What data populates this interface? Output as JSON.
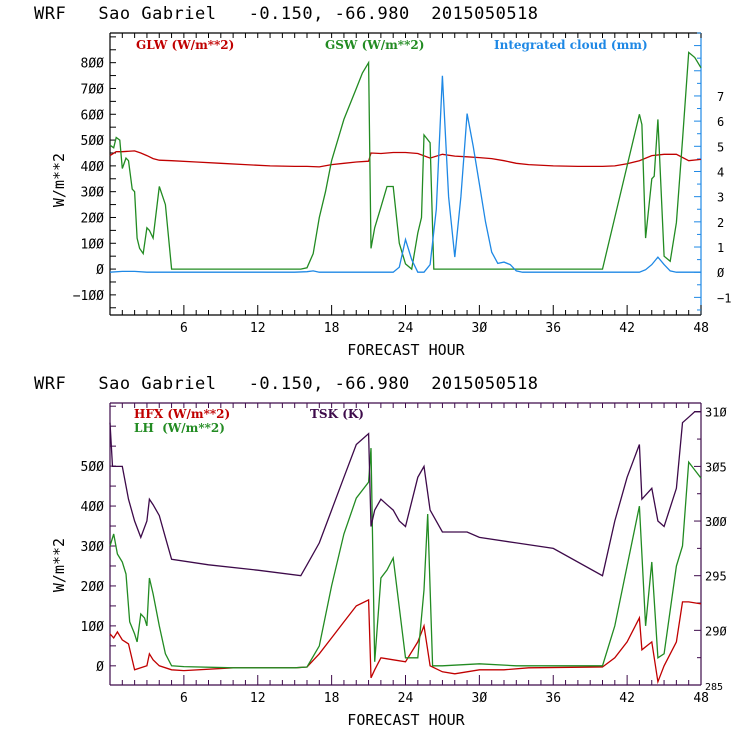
{
  "charts_meta": {
    "top_title": "WRF   Sao Gabriel   -0.150, -66.980  2015050518",
    "bottom_title": "WRF   Sao Gabriel   -0.150, -66.980  2015050518"
  },
  "colors": {
    "glw": "#c00000",
    "gsw": "#228b22",
    "cloud": "#1e88e5",
    "hfx": "#c00000",
    "lh": "#228b22",
    "tsk": "#3d0a4a",
    "frame_top": "#000000",
    "right_axis_top": "#1e88e5",
    "frame_bottom": "#3d0a4a"
  },
  "chart_data": [
    {
      "type": "line",
      "title": "WRF   Sao Gabriel   -0.150, -66.980  2015050518",
      "xlabel": "FORECAST HOUR",
      "ylabel": "W/m**2",
      "ylabel_right": "",
      "xlim": [
        0,
        48
      ],
      "ylim": [
        -178,
        915
      ],
      "ylim_right": [
        -1.7,
        9.5
      ],
      "xticks": [
        6,
        12,
        18,
        24,
        30,
        36,
        42,
        48
      ],
      "yticks": [
        -100,
        0,
        100,
        200,
        300,
        400,
        500,
        600,
        700,
        800
      ],
      "yticks_right": [
        -1,
        0,
        1,
        2,
        3,
        4,
        5,
        6,
        7
      ],
      "grid": false,
      "legend_position": "top",
      "series": [
        {
          "name": "GLW (W/m**2)",
          "axis": "left",
          "x": [
            0,
            0.5,
            1,
            2,
            2.5,
            3,
            3.5,
            4,
            5,
            7,
            9,
            11,
            13,
            15,
            16,
            17,
            18,
            19,
            20,
            21,
            21.2,
            22,
            23,
            24,
            25,
            26,
            27,
            28,
            29,
            30,
            31,
            32,
            33,
            34,
            36,
            38,
            40,
            41,
            42,
            43,
            44,
            45,
            46,
            47,
            48
          ],
          "values": [
            440,
            455,
            455,
            458,
            450,
            440,
            428,
            422,
            420,
            415,
            410,
            405,
            400,
            398,
            398,
            396,
            405,
            410,
            415,
            418,
            450,
            448,
            452,
            452,
            448,
            430,
            445,
            438,
            435,
            432,
            428,
            420,
            410,
            405,
            400,
            398,
            398,
            400,
            408,
            420,
            440,
            445,
            445,
            420,
            425
          ]
        },
        {
          "name": "GSW (W/m**2)",
          "axis": "left",
          "x": [
            0,
            0.3,
            0.5,
            0.8,
            1.0,
            1.3,
            1.5,
            1.8,
            2.0,
            2.2,
            2.4,
            2.7,
            3.0,
            3.2,
            3.5,
            4.0,
            4.5,
            5.0,
            15.5,
            16,
            16.5,
            17,
            17.5,
            18,
            19,
            20,
            20.5,
            21,
            21.2,
            21.5,
            22,
            22.5,
            23,
            23.5,
            24,
            24.5,
            25,
            25.3,
            25.5,
            26,
            26.3,
            27,
            40,
            41,
            42,
            43,
            43.2,
            43.5,
            44,
            44.2,
            44.5,
            45,
            45.5,
            46,
            46.5,
            47,
            47.5,
            48
          ],
          "values": [
            480,
            470,
            510,
            500,
            390,
            430,
            420,
            310,
            300,
            120,
            80,
            60,
            160,
            150,
            120,
            320,
            250,
            0,
            0,
            5,
            60,
            200,
            300,
            420,
            580,
            700,
            760,
            800,
            80,
            160,
            240,
            320,
            320,
            100,
            20,
            0,
            140,
            200,
            520,
            490,
            0,
            0,
            0,
            200,
            400,
            600,
            560,
            120,
            350,
            360,
            580,
            50,
            30,
            180,
            500,
            840,
            820,
            780
          ]
        },
        {
          "name": "Integrated cloud (mm)",
          "axis": "right",
          "x": [
            0,
            1,
            2,
            3,
            15,
            16,
            16.5,
            17,
            23,
            23.5,
            24,
            24.5,
            25,
            25.5,
            26,
            26.5,
            27,
            27.5,
            28,
            28.5,
            29,
            29.5,
            30,
            30.5,
            31,
            31.5,
            32,
            32.5,
            33,
            33.5,
            43,
            43.5,
            44,
            44.5,
            45,
            45.5,
            46,
            48
          ],
          "values": [
            0,
            0.03,
            0.03,
            0,
            0,
            0.02,
            0.05,
            0,
            0,
            0.2,
            1.3,
            0.5,
            0,
            0,
            0.3,
            2.5,
            7.8,
            3.0,
            0.6,
            3.0,
            6.3,
            5.0,
            3.5,
            2.0,
            0.8,
            0.35,
            0.4,
            0.3,
            0.05,
            0,
            0,
            0.1,
            0.3,
            0.6,
            0.3,
            0.05,
            0,
            0
          ]
        }
      ]
    },
    {
      "type": "line",
      "title": "WRF   Sao Gabriel   -0.150, -66.980  2015050518",
      "xlabel": "FORECAST HOUR",
      "ylabel": "W/m**2",
      "ylabel_right": "",
      "xlim": [
        0,
        48
      ],
      "ylim": [
        -48,
        658
      ],
      "ylim_right": [
        285,
        310.8
      ],
      "xticks": [
        6,
        12,
        18,
        24,
        30,
        36,
        42,
        48
      ],
      "yticks": [
        0,
        100,
        200,
        300,
        400,
        500
      ],
      "yticks_right": [
        285,
        290,
        295,
        300,
        305,
        310
      ],
      "grid": false,
      "legend_position": "top",
      "series": [
        {
          "name": "HFX (W/m**2)",
          "axis": "left",
          "x": [
            0,
            0.3,
            0.6,
            1.0,
            1.5,
            2.0,
            2.5,
            3.0,
            3.2,
            3.5,
            4.0,
            5.0,
            6.0,
            10,
            15,
            16,
            17,
            18,
            19,
            20,
            21,
            21.2,
            21.5,
            22,
            23,
            24,
            25,
            25.5,
            26,
            27,
            28,
            30,
            32,
            34,
            40,
            41,
            42,
            43,
            43.2,
            44,
            44.5,
            45,
            46,
            46.5,
            47,
            48
          ],
          "values": [
            80,
            70,
            85,
            65,
            55,
            -10,
            -5,
            0,
            30,
            15,
            0,
            -10,
            -12,
            -5,
            -5,
            -3,
            30,
            70,
            110,
            150,
            165,
            -30,
            -10,
            20,
            15,
            10,
            60,
            100,
            0,
            -15,
            -20,
            -10,
            -10,
            -5,
            -3,
            20,
            60,
            120,
            40,
            60,
            -40,
            0,
            60,
            160,
            160,
            155
          ]
        },
        {
          "name": "LH (W/m**2)",
          "axis": "left",
          "x": [
            0,
            0.3,
            0.6,
            1.0,
            1.3,
            1.6,
            2.0,
            2.2,
            2.5,
            2.8,
            3.0,
            3.2,
            3.5,
            4.0,
            4.5,
            5.0,
            6.0,
            10,
            15,
            16,
            17,
            18,
            19,
            20,
            21,
            21.2,
            21.5,
            22,
            22.5,
            23,
            24,
            25,
            25.5,
            25.8,
            26.2,
            27,
            30,
            33,
            36,
            40,
            41,
            42,
            43,
            43.5,
            44,
            44.5,
            45,
            46,
            46.5,
            47,
            48
          ],
          "values": [
            300,
            330,
            280,
            260,
            230,
            110,
            80,
            60,
            130,
            120,
            100,
            220,
            180,
            100,
            30,
            0,
            -2,
            -5,
            -5,
            -3,
            50,
            200,
            330,
            420,
            460,
            545,
            10,
            220,
            240,
            270,
            20,
            20,
            190,
            380,
            0,
            0,
            5,
            0,
            0,
            0,
            100,
            250,
            400,
            100,
            260,
            20,
            30,
            250,
            300,
            510,
            470
          ]
        },
        {
          "name": "TSK (K)",
          "axis": "right",
          "x": [
            0,
            0.2,
            0.5,
            1.0,
            1.5,
            2.0,
            2.5,
            3.0,
            3.2,
            3.5,
            4.0,
            4.5,
            5.0,
            8,
            12,
            15.5,
            16,
            17,
            18,
            19,
            20,
            21,
            21.2,
            21.5,
            22,
            22.5,
            23,
            23.5,
            24,
            25,
            25.5,
            26,
            27,
            28,
            29,
            30,
            33,
            36,
            40,
            41,
            42,
            43,
            43.2,
            44,
            44.5,
            45,
            46,
            46.5,
            47,
            47.5,
            48
          ],
          "values": [
            309,
            305,
            305,
            305,
            302,
            300,
            298.5,
            300,
            302,
            301.5,
            300.5,
            298.5,
            296.5,
            296,
            295.5,
            295,
            296,
            298,
            301,
            304,
            307,
            308,
            299.5,
            301,
            302,
            301.5,
            301,
            300,
            299.5,
            304,
            305,
            301,
            299,
            299,
            299,
            298.5,
            298,
            297.5,
            295,
            300,
            304,
            307,
            302,
            303,
            300,
            299.5,
            303,
            309,
            309.5,
            310,
            310
          ]
        }
      ]
    }
  ],
  "top": {
    "legend": {
      "glw": "GLW (W/m**2)",
      "gsw": "GSW (W/m**2)",
      "cloud": "Integrated cloud (mm)"
    },
    "ylabel": "W/m**2",
    "xlabel": "FORECAST HOUR"
  },
  "bottom": {
    "legend": {
      "hfx": "HFX (W/m**2)",
      "lh": "LH  (W/m**2)",
      "tsk": "TSK (K)"
    },
    "ylabel": "W/m**2",
    "xlabel": "FORECAST HOUR"
  }
}
